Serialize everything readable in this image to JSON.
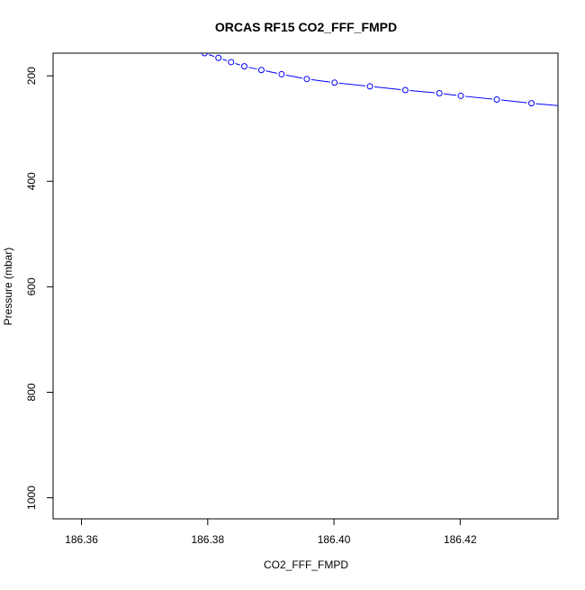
{
  "chart_data": {
    "type": "line",
    "title": "ORCAS RF15 CO2_FFF_FMPD",
    "xlabel": "CO2_FFF_FMPD",
    "ylabel": "Pressure (mbar)",
    "xlim": [
      186.3555,
      186.4355
    ],
    "ylim": [
      1040,
      157
    ],
    "y_reversed": true,
    "grid": false,
    "x_ticks": [
      186.36,
      186.38,
      186.4,
      186.42
    ],
    "x_tick_labels": [
      "186.36",
      "186.38",
      "186.40",
      "186.42"
    ],
    "y_ticks": [
      200,
      400,
      600,
      800,
      1000
    ],
    "y_tick_labels": [
      "200",
      "400",
      "600",
      "800",
      "1000"
    ],
    "series": [
      {
        "color": "#0000ff",
        "marker": "open-circle",
        "x": [
          186.3795,
          186.3817,
          186.3837,
          186.3858,
          186.3885,
          186.3917,
          186.3957,
          186.4001,
          186.4057,
          186.4113,
          186.4167,
          186.4201,
          186.4258,
          186.4313,
          186.4368
        ],
        "y": [
          157,
          166,
          174,
          182,
          189,
          197,
          206,
          213,
          220,
          227,
          233,
          238,
          245,
          252,
          258
        ]
      }
    ]
  }
}
